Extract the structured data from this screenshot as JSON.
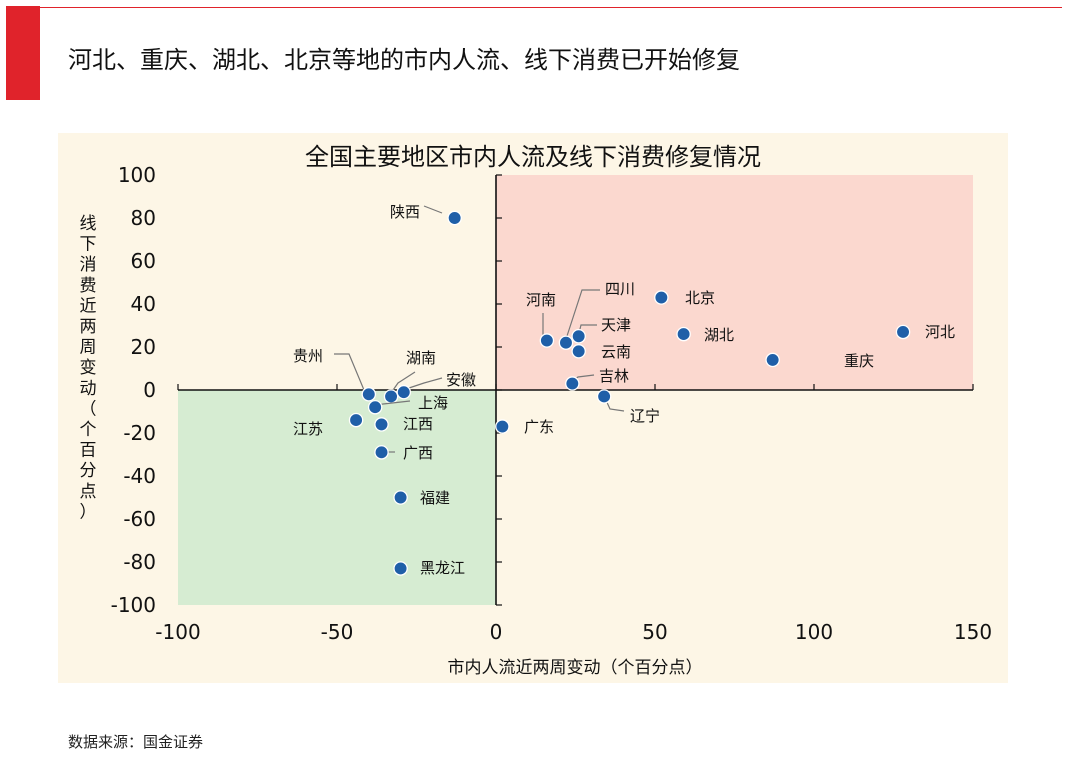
{
  "page": {
    "title": "河北、重庆、湖北、北京等地的市内人流、线下消费已开始修复",
    "source": "数据来源：国金证券"
  },
  "colors": {
    "accent": "#e0232b",
    "panel_bg": "#fdf6e6",
    "quadrant_positive": "#fbd8cf",
    "quadrant_negative": "#d6ecd2",
    "point": "#1f5fa8"
  },
  "chart_data": {
    "type": "scatter",
    "title": "全国主要地区市内人流及线下消费修复情况",
    "xlabel": "市内人流近两周变动（个百分点）",
    "ylabel": "线下消费近两周变动（个百分点）",
    "xlim": [
      -100,
      150
    ],
    "ylim": [
      -100,
      100
    ],
    "xticks": [
      -100,
      -50,
      0,
      50,
      100,
      150
    ],
    "yticks": [
      -100,
      -80,
      -60,
      -40,
      -20,
      0,
      20,
      40,
      60,
      80,
      100
    ],
    "grid": false,
    "quadrants": [
      {
        "name": "positive",
        "x": [
          0,
          150
        ],
        "y": [
          0,
          100
        ]
      },
      {
        "name": "negative",
        "x": [
          -100,
          0
        ],
        "y": [
          -100,
          0
        ]
      }
    ],
    "points": [
      {
        "name": "陕西",
        "x": -13,
        "y": 80
      },
      {
        "name": "河南",
        "x": 16,
        "y": 23
      },
      {
        "name": "四川",
        "x": 22,
        "y": 22
      },
      {
        "name": "天津",
        "x": 26,
        "y": 25
      },
      {
        "name": "云南",
        "x": 26,
        "y": 18
      },
      {
        "name": "吉林",
        "x": 24,
        "y": 3
      },
      {
        "name": "北京",
        "x": 52,
        "y": 43
      },
      {
        "name": "湖北",
        "x": 59,
        "y": 26
      },
      {
        "name": "重庆",
        "x": 87,
        "y": 14
      },
      {
        "name": "河北",
        "x": 128,
        "y": 27
      },
      {
        "name": "辽宁",
        "x": 34,
        "y": -3
      },
      {
        "name": "广东",
        "x": 2,
        "y": -17
      },
      {
        "name": "贵州",
        "x": -40,
        "y": -2
      },
      {
        "name": "湖南",
        "x": -33,
        "y": -3
      },
      {
        "name": "安徽",
        "x": -29,
        "y": -1
      },
      {
        "name": "上海",
        "x": -38,
        "y": -8
      },
      {
        "name": "江苏",
        "x": -44,
        "y": -14
      },
      {
        "name": "江西",
        "x": -36,
        "y": -16
      },
      {
        "name": "广西",
        "x": -36,
        "y": -29
      },
      {
        "name": "福建",
        "x": -30,
        "y": -50
      },
      {
        "name": "黑龙江",
        "x": -30,
        "y": -83
      }
    ]
  }
}
